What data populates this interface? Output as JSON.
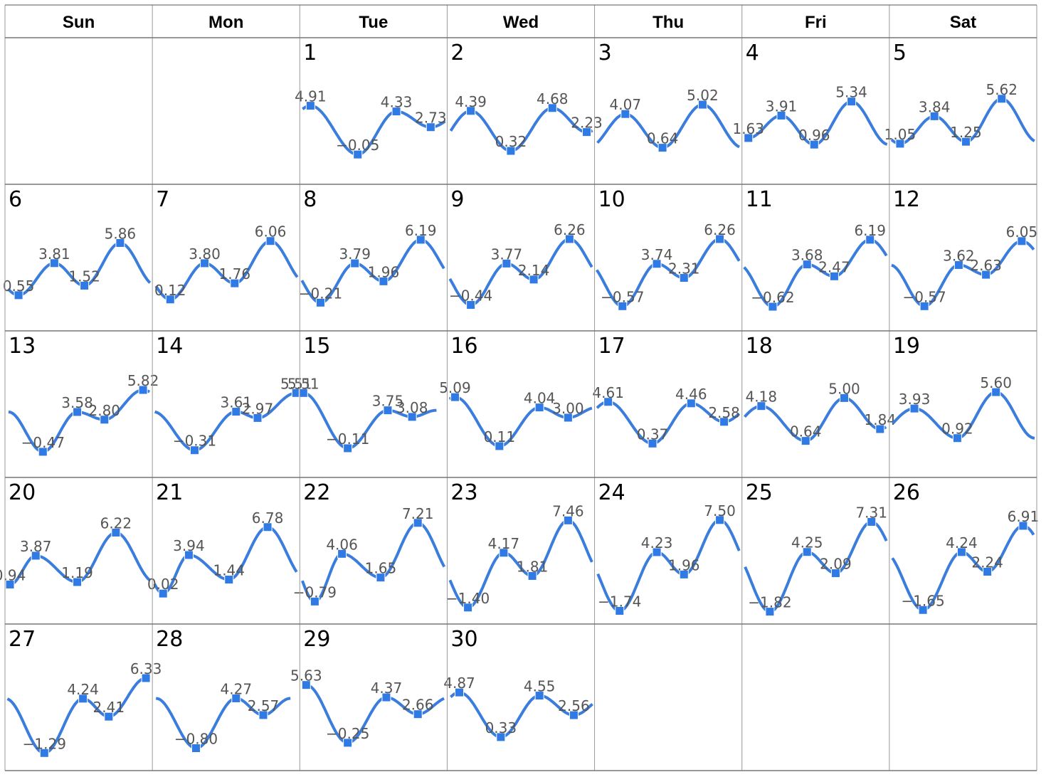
{
  "chart_data": {
    "type": "line",
    "title": "",
    "weekday_headers": [
      "Sun",
      "Mon",
      "Tue",
      "Wed",
      "Thu",
      "Fri",
      "Sat"
    ],
    "first_weekday_index": 2,
    "days": [
      {
        "day": "1",
        "points": [
          {
            "t": 0.06,
            "v": 4.91
          },
          {
            "t": 0.39,
            "v": -0.05
          },
          {
            "t": 0.66,
            "v": 4.33
          },
          {
            "t": 0.9,
            "v": 2.73
          }
        ]
      },
      {
        "day": "2",
        "points": [
          {
            "t": 0.15,
            "v": 4.39
          },
          {
            "t": 0.43,
            "v": 0.32
          },
          {
            "t": 0.72,
            "v": 4.68
          },
          {
            "t": 0.96,
            "v": 2.23
          }
        ]
      },
      {
        "day": "3",
        "points": [
          {
            "t": 0.2,
            "v": 4.07
          },
          {
            "t": 0.46,
            "v": 0.64
          },
          {
            "t": 0.74,
            "v": 5.02
          }
        ]
      },
      {
        "day": "4",
        "points": [
          {
            "t": 0.03,
            "v": 1.63
          },
          {
            "t": 0.26,
            "v": 3.91
          },
          {
            "t": 0.49,
            "v": 0.96
          },
          {
            "t": 0.75,
            "v": 5.34
          }
        ]
      },
      {
        "day": "5",
        "points": [
          {
            "t": 0.06,
            "v": 1.05
          },
          {
            "t": 0.3,
            "v": 3.84
          },
          {
            "t": 0.52,
            "v": 1.25
          },
          {
            "t": 0.77,
            "v": 5.62
          }
        ]
      },
      {
        "day": "6",
        "points": [
          {
            "t": 0.08,
            "v": 0.55
          },
          {
            "t": 0.33,
            "v": 3.81
          },
          {
            "t": 0.54,
            "v": 1.52
          },
          {
            "t": 0.79,
            "v": 5.86
          }
        ]
      },
      {
        "day": "7",
        "points": [
          {
            "t": 0.11,
            "v": 0.12
          },
          {
            "t": 0.35,
            "v": 3.8
          },
          {
            "t": 0.56,
            "v": 1.76
          },
          {
            "t": 0.81,
            "v": 6.06
          }
        ]
      },
      {
        "day": "8",
        "points": [
          {
            "t": 0.13,
            "v": -0.21
          },
          {
            "t": 0.37,
            "v": 3.79
          },
          {
            "t": 0.57,
            "v": 1.96
          },
          {
            "t": 0.83,
            "v": 6.19
          }
        ]
      },
      {
        "day": "9",
        "points": [
          {
            "t": 0.15,
            "v": -0.44
          },
          {
            "t": 0.4,
            "v": 3.77
          },
          {
            "t": 0.59,
            "v": 2.14
          },
          {
            "t": 0.84,
            "v": 6.26
          }
        ]
      },
      {
        "day": "10",
        "points": [
          {
            "t": 0.18,
            "v": -0.57
          },
          {
            "t": 0.42,
            "v": 3.74
          },
          {
            "t": 0.61,
            "v": 2.31
          },
          {
            "t": 0.86,
            "v": 6.26
          }
        ]
      },
      {
        "day": "11",
        "points": [
          {
            "t": 0.2,
            "v": -0.62
          },
          {
            "t": 0.44,
            "v": 3.68
          },
          {
            "t": 0.63,
            "v": 2.47
          },
          {
            "t": 0.88,
            "v": 6.19
          }
        ]
      },
      {
        "day": "12",
        "points": [
          {
            "t": 0.23,
            "v": -0.57
          },
          {
            "t": 0.47,
            "v": 3.62
          },
          {
            "t": 0.66,
            "v": 2.63
          },
          {
            "t": 0.91,
            "v": 6.05
          }
        ]
      },
      {
        "day": "13",
        "points": [
          {
            "t": 0.25,
            "v": -0.47
          },
          {
            "t": 0.49,
            "v": 3.58
          },
          {
            "t": 0.68,
            "v": 2.8
          },
          {
            "t": 0.95,
            "v": 5.82
          }
        ]
      },
      {
        "day": "14",
        "points": [
          {
            "t": 0.28,
            "v": -0.31
          },
          {
            "t": 0.57,
            "v": 3.61
          },
          {
            "t": 0.72,
            "v": 2.97
          },
          {
            "t": 0.99,
            "v": 5.51
          }
        ]
      },
      {
        "day": "15",
        "points": [
          {
            "t": 0.01,
            "v": 5.51
          },
          {
            "t": 0.32,
            "v": -0.11
          },
          {
            "t": 0.6,
            "v": 3.75
          },
          {
            "t": 0.77,
            "v": 3.08
          }
        ]
      },
      {
        "day": "16",
        "points": [
          {
            "t": 0.04,
            "v": 5.09
          },
          {
            "t": 0.35,
            "v": 0.11
          },
          {
            "t": 0.63,
            "v": 4.04
          },
          {
            "t": 0.83,
            "v": 3.0
          }
        ]
      },
      {
        "day": "17",
        "points": [
          {
            "t": 0.08,
            "v": 4.61
          },
          {
            "t": 0.39,
            "v": 0.37
          },
          {
            "t": 0.66,
            "v": 4.46
          },
          {
            "t": 0.89,
            "v": 2.58
          }
        ]
      },
      {
        "day": "18",
        "points": [
          {
            "t": 0.12,
            "v": 4.18
          },
          {
            "t": 0.43,
            "v": 0.64
          },
          {
            "t": 0.7,
            "v": 5.0
          },
          {
            "t": 0.95,
            "v": 1.84
          }
        ]
      },
      {
        "day": "19",
        "points": [
          {
            "t": 0.16,
            "v": 3.93
          },
          {
            "t": 0.46,
            "v": 0.92
          },
          {
            "t": 0.73,
            "v": 5.6
          }
        ]
      },
      {
        "day": "20",
        "points": [
          {
            "t": 0.02,
            "v": 0.94
          },
          {
            "t": 0.2,
            "v": 3.87
          },
          {
            "t": 0.49,
            "v": 1.19
          },
          {
            "t": 0.76,
            "v": 6.22
          }
        ]
      },
      {
        "day": "21",
        "points": [
          {
            "t": 0.06,
            "v": 0.02
          },
          {
            "t": 0.24,
            "v": 3.94
          },
          {
            "t": 0.52,
            "v": 1.44
          },
          {
            "t": 0.79,
            "v": 6.78
          }
        ]
      },
      {
        "day": "22",
        "points": [
          {
            "t": 0.09,
            "v": -0.79
          },
          {
            "t": 0.28,
            "v": 4.06
          },
          {
            "t": 0.55,
            "v": 1.65
          },
          {
            "t": 0.81,
            "v": 7.21
          }
        ]
      },
      {
        "day": "23",
        "points": [
          {
            "t": 0.13,
            "v": -1.4
          },
          {
            "t": 0.38,
            "v": 4.17
          },
          {
            "t": 0.58,
            "v": 1.81
          },
          {
            "t": 0.83,
            "v": 7.46
          }
        ]
      },
      {
        "day": "24",
        "points": [
          {
            "t": 0.16,
            "v": -1.74
          },
          {
            "t": 0.42,
            "v": 4.23
          },
          {
            "t": 0.61,
            "v": 1.96
          },
          {
            "t": 0.86,
            "v": 7.5
          }
        ]
      },
      {
        "day": "25",
        "points": [
          {
            "t": 0.18,
            "v": -1.82
          },
          {
            "t": 0.44,
            "v": 4.25
          },
          {
            "t": 0.64,
            "v": 2.09
          },
          {
            "t": 0.89,
            "v": 7.31
          }
        ]
      },
      {
        "day": "26",
        "points": [
          {
            "t": 0.22,
            "v": -1.65
          },
          {
            "t": 0.49,
            "v": 4.24
          },
          {
            "t": 0.67,
            "v": 2.24
          },
          {
            "t": 0.92,
            "v": 6.91
          }
        ]
      },
      {
        "day": "27",
        "points": [
          {
            "t": 0.26,
            "v": -1.29
          },
          {
            "t": 0.53,
            "v": 4.24
          },
          {
            "t": 0.71,
            "v": 2.41
          },
          {
            "t": 0.97,
            "v": 6.33
          }
        ]
      },
      {
        "day": "28",
        "points": [
          {
            "t": 0.29,
            "v": -0.8
          },
          {
            "t": 0.57,
            "v": 4.27
          },
          {
            "t": 0.76,
            "v": 2.57
          }
        ]
      },
      {
        "day": "29",
        "points": [
          {
            "t": 0.03,
            "v": 5.63
          },
          {
            "t": 0.32,
            "v": -0.25
          },
          {
            "t": 0.59,
            "v": 4.37
          },
          {
            "t": 0.81,
            "v": 2.66
          }
        ]
      },
      {
        "day": "30",
        "points": [
          {
            "t": 0.07,
            "v": 4.87
          },
          {
            "t": 0.36,
            "v": 0.33
          },
          {
            "t": 0.63,
            "v": 4.55
          },
          {
            "t": 0.87,
            "v": 2.56
          }
        ]
      }
    ],
    "x_range_per_day": [
      0,
      1
    ],
    "y_range": [
      -2.5,
      8.5
    ],
    "grid": false,
    "legend": "none",
    "colors": {
      "line": "#3b7ddd",
      "marker": "#2f7ae5",
      "grid": "#555555",
      "label": "#555555"
    }
  }
}
